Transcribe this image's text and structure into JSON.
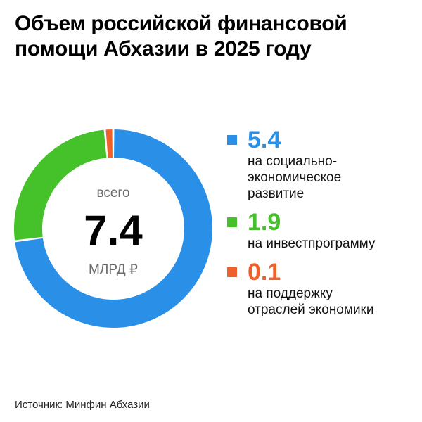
{
  "title": {
    "line1": "Объем российской финансовой",
    "line2": "помощи Абхазии в 2025 году"
  },
  "center": {
    "caption": "всего",
    "total": "7.4",
    "unit": "МЛРД ₽"
  },
  "source": "Источник: Минфин Абхазии",
  "chart_data": {
    "type": "pie",
    "title": "Объем российской финансовой помощи Абхазии в 2025 году",
    "total": 7.4,
    "unit": "МЛРД ₽",
    "slices": [
      {
        "label": "на социально-экономическое развитие",
        "value": 5.4,
        "display": "5.4",
        "color": "#2a8fe6",
        "label_lines": [
          "на социально-",
          "экономическое",
          "развитие"
        ]
      },
      {
        "label": "на инвестпрограмму",
        "value": 1.9,
        "display": "1.9",
        "color": "#45c12a",
        "label_lines": [
          "на инвестпрограмму"
        ]
      },
      {
        "label": "на поддержку отраслей экономики",
        "value": 0.1,
        "display": "0.1",
        "color": "#f0602a",
        "label_lines": [
          "на поддержку",
          "отраслей экономики"
        ]
      }
    ]
  }
}
